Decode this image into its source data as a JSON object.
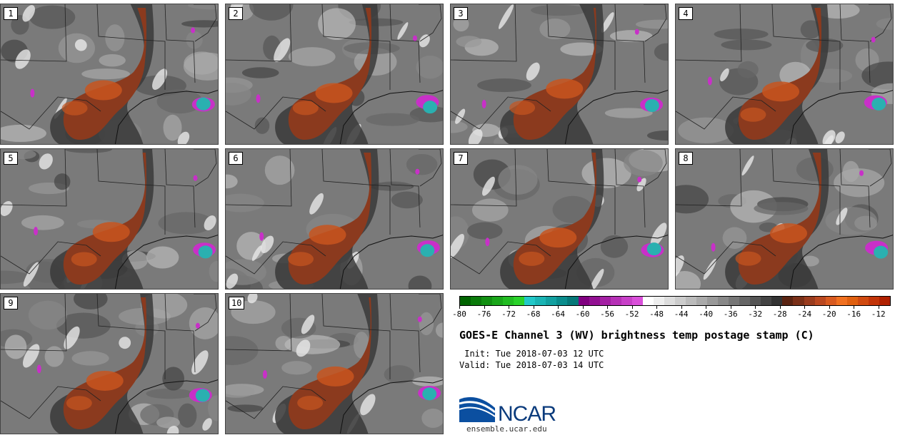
{
  "panels": [
    {
      "label": "1"
    },
    {
      "label": "2"
    },
    {
      "label": "3"
    },
    {
      "label": "4"
    },
    {
      "label": "5"
    },
    {
      "label": "6"
    },
    {
      "label": "7"
    },
    {
      "label": "8"
    },
    {
      "label": "9"
    },
    {
      "label": "10"
    }
  ],
  "colorbar": {
    "min": -80,
    "max": -10,
    "step": 2,
    "tick_labels": [
      "-80",
      "-76",
      "-72",
      "-68",
      "-64",
      "-60",
      "-56",
      "-52",
      "-48",
      "-44",
      "-40",
      "-36",
      "-32",
      "-28",
      "-24",
      "-20",
      "-16",
      "-12"
    ],
    "colors": [
      "#006400",
      "#0a7a0a",
      "#129012",
      "#1aa61a",
      "#22bc22",
      "#2ad22a",
      "#22c8c8",
      "#1ab4b4",
      "#12a0a0",
      "#0a8c8c",
      "#067878",
      "#800080",
      "#921092",
      "#a420a4",
      "#b630b6",
      "#c840c8",
      "#da50da",
      "#ffffff",
      "#eeeeee",
      "#dddddd",
      "#cccccc",
      "#bbbbbb",
      "#aaaaaa",
      "#999999",
      "#888888",
      "#777777",
      "#666666",
      "#555555",
      "#444444",
      "#333333",
      "#5a2412",
      "#7a3018",
      "#9a3c1e",
      "#ba4820",
      "#d85a20",
      "#f07020",
      "#e06010",
      "#d04a10",
      "#c23408",
      "#b02000"
    ]
  },
  "title": "GOES-E Channel 3 (WV) brightness temp postage stamp (C)",
  "init": " Init: Tue 2018-07-03 12 UTC",
  "valid": "Valid: Tue 2018-07-03 14 UTC",
  "logo_text": "NCAR",
  "site": "ensemble.ucar.edu",
  "colors": {
    "brown_core": "#8b3a1e",
    "orange": "#c8551f",
    "magenta": "#c830c8",
    "cyan": "#2ab0b0"
  }
}
